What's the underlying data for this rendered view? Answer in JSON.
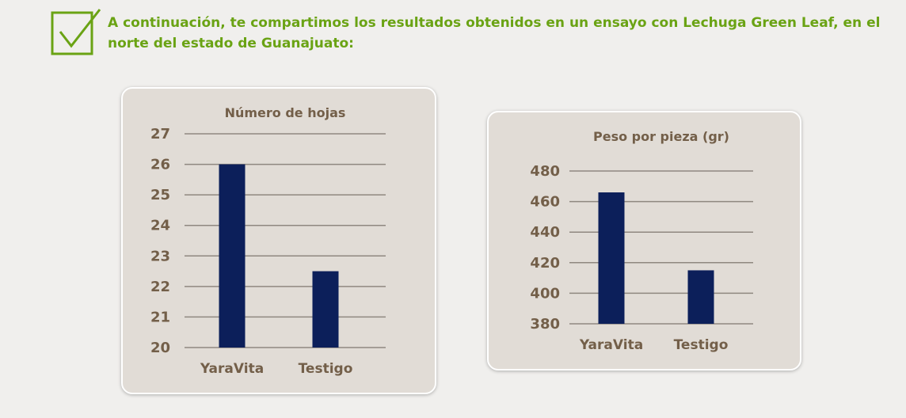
{
  "intro_text": "A continuación, te compartimos los resultados obtenidos en un ensayo con Lechuga Green Leaf, en el norte del estado de Guanajuato:",
  "colors": {
    "accent": "#6aa314",
    "bar": "#0c1f5a",
    "label": "#735f49",
    "panel": "#e1dcd6",
    "background": "#f0efed"
  },
  "chart_data": [
    {
      "type": "bar",
      "title": "Número de hojas",
      "categories": [
        "YaraVita",
        "Testigo"
      ],
      "values": [
        26,
        22.5
      ],
      "ylim": [
        20,
        27
      ],
      "yticks": [
        "20",
        "21",
        "22",
        "23",
        "24",
        "25",
        "26",
        "27"
      ],
      "xlabel": "",
      "ylabel": "",
      "grid": true
    },
    {
      "type": "bar",
      "title": "Peso por pieza (gr)",
      "categories": [
        "YaraVita",
        "Testigo"
      ],
      "values": [
        466,
        415
      ],
      "ylim": [
        380,
        480
      ],
      "yticks": [
        "380",
        "400",
        "420",
        "440",
        "460",
        "480"
      ],
      "xlabel": "",
      "ylabel": "",
      "grid": true
    }
  ]
}
